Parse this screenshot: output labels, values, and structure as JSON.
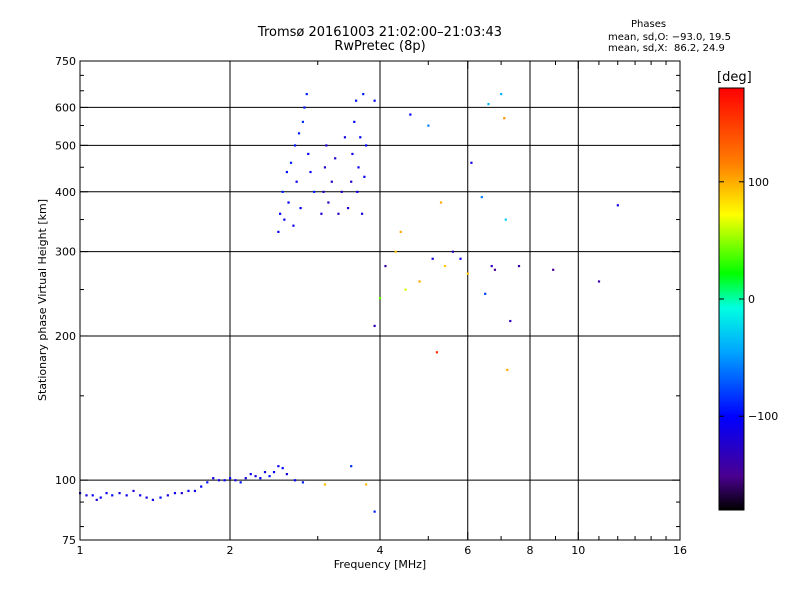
{
  "header": {
    "title": "Tromsø 20161003 21:02:00–21:03:43",
    "subtitle": "RwPretec (8p)"
  },
  "phases": {
    "label": "Phases",
    "o_line": "mean, sd,O: −93.0, 19.5",
    "x_line": "mean, sd,X:  86.2, 24.9"
  },
  "colorbar": {
    "title": "[deg]",
    "ticks": [
      "100",
      "0",
      "−100"
    ],
    "tick_values": [
      100,
      0,
      -100
    ],
    "range": [
      -180,
      180
    ]
  },
  "chart_data": {
    "type": "scatter",
    "title": "Tromsø 20161003 21:02:00–21:03:43",
    "subtitle": "RwPretec (8p)",
    "xlabel": "Frequency [MHz]",
    "ylabel": "Stationary phase Virtual Height [km]",
    "xscale": "log",
    "yscale": "log",
    "xlim": [
      1,
      16
    ],
    "ylim": [
      75,
      750
    ],
    "x_ticks": [
      1,
      2,
      4,
      6,
      8,
      10,
      16
    ],
    "x_tick_labels": [
      "1",
      "2",
      "4",
      "6",
      "8",
      "10",
      "16"
    ],
    "y_ticks": [
      75,
      100,
      200,
      300,
      400,
      500,
      600,
      750
    ],
    "y_tick_labels": [
      "75",
      "100",
      "200",
      "300",
      "400",
      "500",
      "600",
      "750"
    ],
    "grid_x": [
      2,
      4,
      6,
      8,
      10
    ],
    "grid_y": [
      100,
      200,
      300,
      400,
      500,
      600
    ],
    "color_encoding": "phase in degrees (colorbar)",
    "series": [
      {
        "role": "E-region trace",
        "points": [
          [
            1.0,
            94,
            -110
          ],
          [
            1.03,
            93,
            -115
          ],
          [
            1.06,
            93,
            -100
          ],
          [
            1.08,
            91,
            -120
          ],
          [
            1.1,
            92,
            -105
          ],
          [
            1.13,
            94,
            -110
          ],
          [
            1.16,
            93,
            -95
          ],
          [
            1.2,
            94,
            -115
          ],
          [
            1.24,
            93,
            -110
          ],
          [
            1.28,
            95,
            -120
          ],
          [
            1.32,
            93,
            -105
          ],
          [
            1.36,
            92,
            -115
          ],
          [
            1.4,
            91,
            -110
          ],
          [
            1.45,
            92,
            -100
          ],
          [
            1.5,
            93,
            -115
          ],
          [
            1.55,
            94,
            -110
          ],
          [
            1.6,
            94,
            -120
          ],
          [
            1.65,
            95,
            -105
          ],
          [
            1.7,
            95,
            -110
          ],
          [
            1.75,
            97,
            -100
          ],
          [
            1.8,
            99,
            -95
          ],
          [
            1.85,
            101,
            -110
          ],
          [
            1.9,
            100,
            -115
          ],
          [
            1.95,
            100,
            -105
          ],
          [
            2.0,
            101,
            -100
          ],
          [
            2.05,
            100,
            -110
          ],
          [
            2.1,
            99,
            -95
          ],
          [
            2.15,
            101,
            -110
          ],
          [
            2.2,
            103,
            -105
          ],
          [
            2.25,
            102,
            -115
          ],
          [
            2.3,
            101,
            -100
          ],
          [
            2.35,
            104,
            -110
          ],
          [
            2.4,
            102,
            -95
          ],
          [
            2.45,
            104,
            -105
          ],
          [
            2.5,
            107,
            -110
          ],
          [
            2.55,
            106,
            -100
          ],
          [
            2.6,
            103,
            -115
          ],
          [
            2.7,
            100,
            -105
          ],
          [
            2.8,
            99,
            -90
          ],
          [
            3.1,
            98,
            95
          ],
          [
            3.5,
            107,
            -85
          ],
          [
            3.75,
            98,
            95
          ],
          [
            3.9,
            86,
            -90
          ]
        ]
      },
      {
        "role": "F-region O trace",
        "points": [
          [
            2.5,
            330,
            -110
          ],
          [
            2.52,
            360,
            -100
          ],
          [
            2.55,
            400,
            -90
          ],
          [
            2.57,
            350,
            -105
          ],
          [
            2.6,
            440,
            -95
          ],
          [
            2.62,
            380,
            -100
          ],
          [
            2.65,
            460,
            -90
          ],
          [
            2.68,
            340,
            -110
          ],
          [
            2.7,
            500,
            -95
          ],
          [
            2.72,
            420,
            -105
          ],
          [
            2.75,
            530,
            -90
          ],
          [
            2.77,
            370,
            -100
          ],
          [
            2.8,
            560,
            -85
          ],
          [
            2.82,
            600,
            -95
          ],
          [
            2.85,
            640,
            -90
          ],
          [
            2.87,
            480,
            -100
          ],
          [
            2.9,
            440,
            -105
          ],
          [
            2.95,
            400,
            -90
          ],
          [
            3.05,
            360,
            -120
          ],
          [
            3.08,
            400,
            -130
          ],
          [
            3.1,
            450,
            -125
          ],
          [
            3.12,
            500,
            -120
          ],
          [
            3.15,
            380,
            -130
          ],
          [
            3.2,
            420,
            -125
          ],
          [
            3.25,
            470,
            -120
          ],
          [
            3.3,
            360,
            -130
          ],
          [
            3.35,
            400,
            -125
          ],
          [
            3.4,
            520,
            -115
          ],
          [
            3.45,
            370,
            -125
          ],
          [
            3.5,
            420,
            -120
          ],
          [
            3.52,
            480,
            -110
          ],
          [
            3.55,
            560,
            -100
          ],
          [
            3.58,
            620,
            -95
          ],
          [
            3.6,
            400,
            -110
          ],
          [
            3.62,
            450,
            -105
          ],
          [
            3.65,
            520,
            -100
          ],
          [
            3.68,
            360,
            -115
          ],
          [
            3.7,
            640,
            -90
          ],
          [
            3.72,
            430,
            -105
          ],
          [
            3.75,
            500,
            -100
          ]
        ]
      },
      {
        "role": "Scattered echoes",
        "points": [
          [
            3.9,
            620,
            -100
          ],
          [
            3.9,
            210,
            -130
          ],
          [
            4.0,
            240,
            40
          ],
          [
            4.1,
            280,
            -140
          ],
          [
            4.3,
            300,
            90
          ],
          [
            4.4,
            330,
            100
          ],
          [
            4.5,
            250,
            60
          ],
          [
            4.6,
            580,
            -100
          ],
          [
            4.8,
            260,
            100
          ],
          [
            5.0,
            550,
            -60
          ],
          [
            5.1,
            290,
            -110
          ],
          [
            5.2,
            185,
            160
          ],
          [
            5.3,
            380,
            100
          ],
          [
            5.4,
            280,
            90
          ],
          [
            5.6,
            300,
            -130
          ],
          [
            5.8,
            290,
            -110
          ],
          [
            6.0,
            270,
            90
          ],
          [
            6.1,
            460,
            -110
          ],
          [
            6.4,
            390,
            -60
          ],
          [
            6.5,
            245,
            -80
          ],
          [
            6.6,
            610,
            -40
          ],
          [
            6.7,
            280,
            -130
          ],
          [
            6.8,
            275,
            -150
          ],
          [
            7.0,
            640,
            -40
          ],
          [
            7.1,
            570,
            110
          ],
          [
            7.15,
            350,
            -30
          ],
          [
            7.2,
            170,
            100
          ],
          [
            7.3,
            215,
            -130
          ],
          [
            7.6,
            280,
            -140
          ],
          [
            8.9,
            275,
            -150
          ],
          [
            11.0,
            260,
            -140
          ],
          [
            12.0,
            375,
            -110
          ]
        ]
      }
    ]
  }
}
